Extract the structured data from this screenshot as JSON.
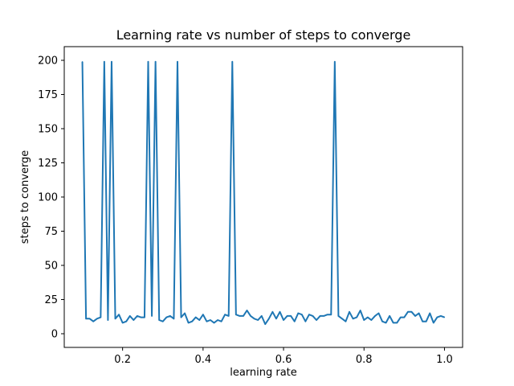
{
  "chart_data": {
    "type": "line",
    "title": "Learning rate vs number of steps to converge",
    "xlabel": "learning rate",
    "ylabel": "steps to converge",
    "xlim": [
      0.055,
      1.045
    ],
    "ylim": [
      -10,
      210
    ],
    "xticks": [
      0.2,
      0.4,
      0.6,
      0.8,
      1.0
    ],
    "xtick_labels": [
      "0.2",
      "0.4",
      "0.6",
      "0.8",
      "1.0"
    ],
    "yticks": [
      0,
      25,
      50,
      75,
      100,
      125,
      150,
      175,
      200
    ],
    "ytick_labels": [
      "0",
      "25",
      "50",
      "75",
      "100",
      "125",
      "150",
      "175",
      "200"
    ],
    "grid": false,
    "color": "#1f77b4",
    "series": [
      {
        "name": "",
        "x": [
          0.1,
          0.1091,
          0.1182,
          0.1273,
          0.1364,
          0.1455,
          0.1545,
          0.1636,
          0.1727,
          0.1818,
          0.1909,
          0.2,
          0.2091,
          0.2182,
          0.2273,
          0.2364,
          0.2455,
          0.2545,
          0.2636,
          0.2727,
          0.2818,
          0.2909,
          0.3,
          0.3091,
          0.3182,
          0.3273,
          0.3364,
          0.3455,
          0.3545,
          0.3636,
          0.3727,
          0.3818,
          0.3909,
          0.4,
          0.4091,
          0.4182,
          0.4273,
          0.4364,
          0.4455,
          0.4545,
          0.4636,
          0.4727,
          0.4818,
          0.4909,
          0.5,
          0.5091,
          0.5182,
          0.5273,
          0.5364,
          0.5455,
          0.5545,
          0.5636,
          0.5727,
          0.5818,
          0.5909,
          0.6,
          0.6091,
          0.6182,
          0.6273,
          0.6364,
          0.6455,
          0.6545,
          0.6636,
          0.6727,
          0.6818,
          0.6909,
          0.7,
          0.7091,
          0.7182,
          0.7273,
          0.7364,
          0.7455,
          0.7545,
          0.7636,
          0.7727,
          0.7818,
          0.7909,
          0.8,
          0.8091,
          0.8182,
          0.8273,
          0.8364,
          0.8455,
          0.8545,
          0.8636,
          0.8727,
          0.8818,
          0.8909,
          0.9,
          0.9091,
          0.9182,
          0.9273,
          0.9364,
          0.9455,
          0.9545,
          0.9636,
          0.9727,
          0.9818,
          0.9909,
          1.0
        ],
        "y": [
          199,
          11,
          11,
          9,
          11,
          12,
          199,
          10,
          199,
          11,
          14,
          8,
          9,
          13,
          10,
          13,
          12,
          12,
          199,
          13,
          199,
          10,
          9,
          12,
          13,
          11,
          199,
          12,
          15,
          8,
          9,
          12,
          10,
          14,
          9,
          10,
          8,
          10,
          9,
          14,
          13,
          199,
          14,
          13,
          13,
          17,
          13,
          11,
          10,
          13,
          7,
          11,
          16,
          11,
          16,
          10,
          13,
          13,
          9,
          15,
          14,
          9,
          14,
          13,
          10,
          13,
          13,
          14,
          14,
          199,
          13,
          11,
          9,
          16,
          11,
          12,
          17,
          10,
          12,
          10,
          13,
          15,
          9,
          8,
          13,
          8,
          8,
          12,
          12,
          16,
          16,
          13,
          15,
          9,
          9,
          15,
          8,
          12,
          13,
          12
        ]
      }
    ]
  }
}
